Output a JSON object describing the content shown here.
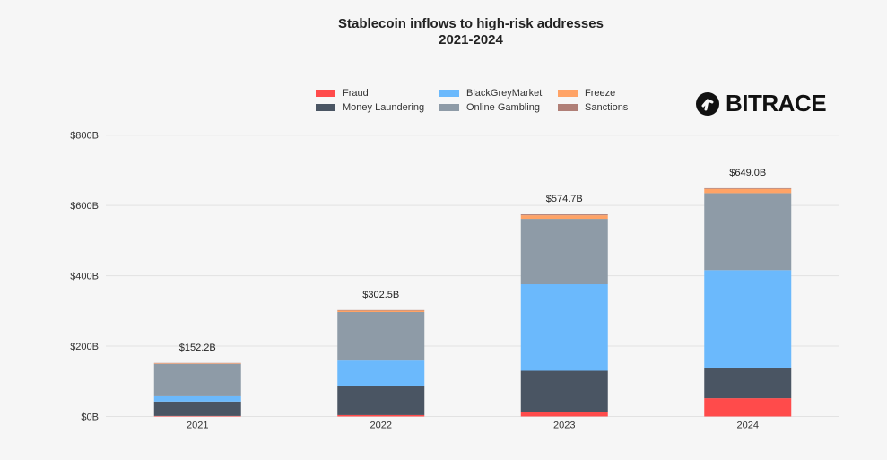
{
  "brand": {
    "name": "BITRACE",
    "icon": "bitrace-logo-icon"
  },
  "chart_data": {
    "type": "bar",
    "stacked": true,
    "title": "Stablecoin inflows to high-risk addresses",
    "subtitle": "2021-2024",
    "xlabel": "",
    "ylabel": "",
    "ylim": [
      0,
      800
    ],
    "yticks": [
      0,
      200,
      400,
      600,
      800
    ],
    "ytick_labels": [
      "$0B",
      "$200B",
      "$400B",
      "$600B",
      "$800B"
    ],
    "grid": true,
    "legend_position": "top-center",
    "categories": [
      "2021",
      "2022",
      "2023",
      "2024"
    ],
    "totals": [
      152.2,
      302.5,
      574.7,
      649.0
    ],
    "total_labels": [
      "$152.2B",
      "$302.5B",
      "$574.7B",
      "$649.0B"
    ],
    "series": [
      {
        "name": "Fraud",
        "color": "#ff4b4b",
        "values": [
          1.5,
          4,
          12,
          52
        ]
      },
      {
        "name": "Money Laundering",
        "color": "#4a5563",
        "values": [
          41,
          84,
          118,
          87
        ]
      },
      {
        "name": "BlackGreyMarket",
        "color": "#6bb9fc",
        "values": [
          15,
          71,
          246,
          277
        ]
      },
      {
        "name": "Online Gambling",
        "color": "#8e9ba7",
        "values": [
          92,
          138,
          186,
          219
        ]
      },
      {
        "name": "Freeze",
        "color": "#ffa366",
        "values": [
          1.5,
          4,
          10,
          12
        ]
      },
      {
        "name": "Sanctions",
        "color": "#b07f77",
        "values": [
          1.2,
          1.5,
          2.7,
          2
        ]
      }
    ]
  }
}
